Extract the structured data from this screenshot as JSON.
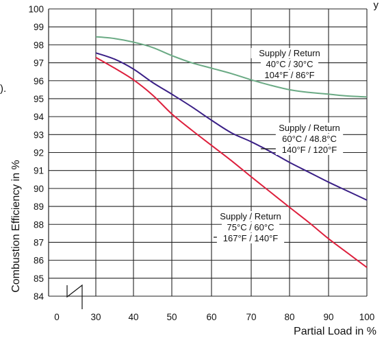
{
  "chart_data": {
    "type": "line",
    "title": "",
    "xlabel": "Partial Load in %",
    "ylabel": "Combustion Efficiency in %",
    "xlim": [
      0,
      100
    ],
    "ylim": [
      84,
      100
    ],
    "x_ticks": [
      "0",
      "30",
      "40",
      "50",
      "60",
      "70",
      "80",
      "90",
      "100"
    ],
    "y_ticks": [
      "84",
      "85",
      "86",
      "87",
      "88",
      "89",
      "90",
      "91",
      "92",
      "93",
      "94",
      "95",
      "96",
      "97",
      "98",
      "99",
      "100"
    ],
    "grid": true,
    "axis_break": "x between 0 and 30",
    "series": [
      {
        "color": "#6aaa84",
        "points": [
          [
            30,
            98.45
          ],
          [
            35,
            98.35
          ],
          [
            40,
            98.15
          ],
          [
            45,
            97.85
          ],
          [
            50,
            97.4
          ],
          [
            55,
            97.0
          ],
          [
            60,
            96.7
          ],
          [
            65,
            96.4
          ],
          [
            70,
            96.05
          ],
          [
            75,
            95.75
          ],
          [
            80,
            95.5
          ],
          [
            85,
            95.35
          ],
          [
            90,
            95.25
          ],
          [
            95,
            95.15
          ],
          [
            100,
            95.1
          ]
        ]
      },
      {
        "color": "#3a1f86",
        "points": [
          [
            30,
            97.55
          ],
          [
            35,
            97.2
          ],
          [
            40,
            96.65
          ],
          [
            45,
            95.9
          ],
          [
            50,
            95.25
          ],
          [
            55,
            94.55
          ],
          [
            60,
            93.8
          ],
          [
            65,
            93.1
          ],
          [
            70,
            92.6
          ],
          [
            75,
            92.05
          ],
          [
            80,
            91.45
          ],
          [
            85,
            90.9
          ],
          [
            90,
            90.35
          ],
          [
            95,
            89.85
          ],
          [
            100,
            89.35
          ]
        ]
      },
      {
        "color": "#dd1f3c",
        "points": [
          [
            30,
            97.3
          ],
          [
            35,
            96.7
          ],
          [
            40,
            96.05
          ],
          [
            45,
            95.2
          ],
          [
            50,
            94.15
          ],
          [
            55,
            93.25
          ],
          [
            60,
            92.4
          ],
          [
            65,
            91.55
          ],
          [
            70,
            90.65
          ],
          [
            75,
            89.8
          ],
          [
            80,
            88.95
          ],
          [
            85,
            88.1
          ],
          [
            90,
            87.2
          ],
          [
            95,
            86.4
          ],
          [
            100,
            85.6
          ]
        ]
      }
    ],
    "annotations": [
      {
        "lines": [
          "Supply / Return",
          "40°C / 30°C",
          "104°F / 86°F"
        ],
        "series_index": 0
      },
      {
        "lines": [
          "Supply / Return",
          "60°C / 48.8°C",
          "140°F / 120°F"
        ],
        "series_index": 1
      },
      {
        "lines": [
          "Supply / Return",
          "75°C / 60°C",
          "167°F / 140°F"
        ],
        "series_index": 2
      }
    ],
    "edge_fragments": [
      "y",
      ")."
    ]
  }
}
